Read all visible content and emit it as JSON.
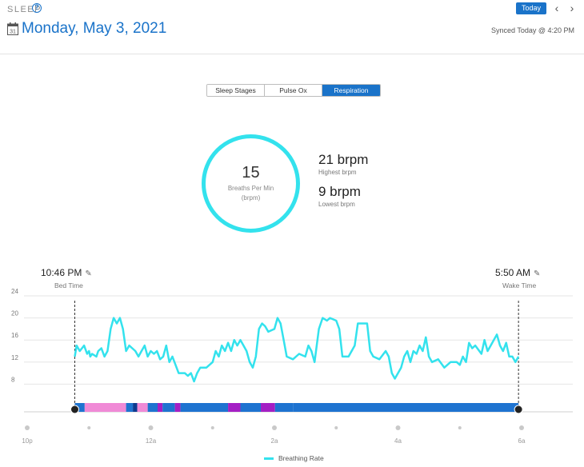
{
  "header": {
    "section": "SLEEP",
    "help_icon": "question-circle-icon",
    "calendar_day": "31",
    "date": "Monday, May 3, 2021",
    "today_button": "Today",
    "synced": "Synced Today @ 4:20 PM"
  },
  "tabs": [
    {
      "label": "Sleep Stages",
      "active": false
    },
    {
      "label": "Pulse Ox",
      "active": false
    },
    {
      "label": "Respiration",
      "active": true
    }
  ],
  "summary": {
    "avg_value": "15",
    "avg_label_line1": "Breaths Per Min",
    "avg_label_line2": "(brpm)",
    "highest_value": "21 brpm",
    "highest_label": "Highest brpm",
    "lowest_value": "9 brpm",
    "lowest_label": "Lowest brpm"
  },
  "bed_time": {
    "value": "10:46 PM",
    "label": "Bed Time"
  },
  "wake_time": {
    "value": "5:50 AM",
    "label": "Wake Time"
  },
  "legend": {
    "label": "Breathing Rate"
  },
  "colors": {
    "accent": "#1a73c9",
    "line": "#33e2ed",
    "awake": "#f08ad6",
    "light": "#1e73d0",
    "deep": "#0c3b8f",
    "rem": "#a41fc4"
  },
  "chart_data": {
    "type": "line",
    "ylim": [
      4,
      24
    ],
    "yticks": [
      8,
      12,
      16,
      20,
      24
    ],
    "xlim": [
      -0.5,
      8.5
    ],
    "xticks": [
      {
        "x": 0,
        "label": "10p"
      },
      {
        "x": 1,
        "label": ""
      },
      {
        "x": 2,
        "label": "12a"
      },
      {
        "x": 3,
        "label": ""
      },
      {
        "x": 4,
        "label": "2a"
      },
      {
        "x": 5,
        "label": ""
      },
      {
        "x": 6,
        "label": "4a"
      },
      {
        "x": 7,
        "label": ""
      },
      {
        "x": 8,
        "label": "6a"
      }
    ],
    "series": [
      {
        "name": "Breathing Rate",
        "points": [
          [
            0.77,
            13
          ],
          [
            0.8,
            15
          ],
          [
            0.85,
            14
          ],
          [
            0.92,
            15
          ],
          [
            0.97,
            13.5
          ],
          [
            1.0,
            14
          ],
          [
            1.02,
            13
          ],
          [
            1.05,
            13.5
          ],
          [
            1.12,
            13
          ],
          [
            1.15,
            14
          ],
          [
            1.2,
            14.5
          ],
          [
            1.25,
            13
          ],
          [
            1.3,
            14
          ],
          [
            1.35,
            18
          ],
          [
            1.4,
            20
          ],
          [
            1.45,
            19
          ],
          [
            1.5,
            20
          ],
          [
            1.55,
            18
          ],
          [
            1.6,
            14
          ],
          [
            1.65,
            15
          ],
          [
            1.7,
            14.5
          ],
          [
            1.75,
            14
          ],
          [
            1.8,
            13
          ],
          [
            1.85,
            14
          ],
          [
            1.9,
            15
          ],
          [
            1.95,
            13
          ],
          [
            2.0,
            14
          ],
          [
            2.05,
            13.5
          ],
          [
            2.1,
            14
          ],
          [
            2.15,
            12.5
          ],
          [
            2.2,
            13
          ],
          [
            2.25,
            15
          ],
          [
            2.3,
            12
          ],
          [
            2.35,
            13
          ],
          [
            2.45,
            10
          ],
          [
            2.55,
            10
          ],
          [
            2.6,
            9.5
          ],
          [
            2.65,
            10
          ],
          [
            2.7,
            8.5
          ],
          [
            2.75,
            10
          ],
          [
            2.8,
            11
          ],
          [
            2.9,
            11
          ],
          [
            3.0,
            12
          ],
          [
            3.05,
            14
          ],
          [
            3.1,
            13
          ],
          [
            3.15,
            15
          ],
          [
            3.2,
            14
          ],
          [
            3.25,
            15.5
          ],
          [
            3.3,
            14
          ],
          [
            3.35,
            16
          ],
          [
            3.4,
            15
          ],
          [
            3.45,
            16
          ],
          [
            3.5,
            15
          ],
          [
            3.55,
            14
          ],
          [
            3.6,
            12
          ],
          [
            3.65,
            11
          ],
          [
            3.7,
            13
          ],
          [
            3.75,
            18
          ],
          [
            3.8,
            19
          ],
          [
            3.85,
            18.5
          ],
          [
            3.9,
            17.5
          ],
          [
            4.0,
            18
          ],
          [
            4.05,
            20
          ],
          [
            4.1,
            19
          ],
          [
            4.15,
            16
          ],
          [
            4.2,
            13
          ],
          [
            4.3,
            12.5
          ],
          [
            4.4,
            13.5
          ],
          [
            4.5,
            13
          ],
          [
            4.55,
            15
          ],
          [
            4.6,
            14
          ],
          [
            4.65,
            12
          ],
          [
            4.72,
            18
          ],
          [
            4.78,
            20
          ],
          [
            4.85,
            19.5
          ],
          [
            4.9,
            20
          ],
          [
            5.0,
            19.5
          ],
          [
            5.05,
            18
          ],
          [
            5.1,
            13
          ],
          [
            5.2,
            13
          ],
          [
            5.3,
            15
          ],
          [
            5.35,
            19
          ],
          [
            5.4,
            19
          ],
          [
            5.5,
            19
          ],
          [
            5.55,
            14
          ],
          [
            5.6,
            13
          ],
          [
            5.7,
            12.5
          ],
          [
            5.8,
            14
          ],
          [
            5.85,
            13
          ],
          [
            5.9,
            10
          ],
          [
            5.95,
            9
          ],
          [
            6.0,
            10
          ],
          [
            6.05,
            11
          ],
          [
            6.1,
            13
          ],
          [
            6.15,
            14
          ],
          [
            6.2,
            12
          ],
          [
            6.25,
            14
          ],
          [
            6.3,
            13.5
          ],
          [
            6.35,
            15
          ],
          [
            6.4,
            14
          ],
          [
            6.45,
            16.5
          ],
          [
            6.5,
            13
          ],
          [
            6.55,
            12
          ],
          [
            6.65,
            12.5
          ],
          [
            6.75,
            11
          ],
          [
            6.85,
            12
          ],
          [
            6.95,
            12
          ],
          [
            7.0,
            11.5
          ],
          [
            7.05,
            13
          ],
          [
            7.1,
            12
          ],
          [
            7.15,
            15.5
          ],
          [
            7.2,
            14.5
          ],
          [
            7.25,
            15
          ],
          [
            7.35,
            13.5
          ],
          [
            7.4,
            16
          ],
          [
            7.45,
            14
          ],
          [
            7.5,
            15
          ],
          [
            7.6,
            17
          ],
          [
            7.65,
            15
          ],
          [
            7.7,
            14
          ],
          [
            7.75,
            15.5
          ],
          [
            7.8,
            13
          ],
          [
            7.85,
            13
          ],
          [
            7.9,
            12
          ],
          [
            7.95,
            13
          ]
        ]
      }
    ],
    "sleep_stages": [
      {
        "start": 0.77,
        "end": 0.93,
        "stage": "light"
      },
      {
        "start": 0.93,
        "end": 1.6,
        "stage": "awake"
      },
      {
        "start": 1.6,
        "end": 1.71,
        "stage": "light"
      },
      {
        "start": 1.71,
        "end": 1.78,
        "stage": "deep"
      },
      {
        "start": 1.78,
        "end": 1.95,
        "stage": "awake"
      },
      {
        "start": 1.95,
        "end": 2.11,
        "stage": "light"
      },
      {
        "start": 2.11,
        "end": 2.19,
        "stage": "rem"
      },
      {
        "start": 2.19,
        "end": 2.39,
        "stage": "light"
      },
      {
        "start": 2.39,
        "end": 2.48,
        "stage": "rem"
      },
      {
        "start": 2.48,
        "end": 3.25,
        "stage": "light"
      },
      {
        "start": 3.25,
        "end": 3.45,
        "stage": "rem"
      },
      {
        "start": 3.45,
        "end": 3.78,
        "stage": "light"
      },
      {
        "start": 3.78,
        "end": 4.01,
        "stage": "rem"
      },
      {
        "start": 4.01,
        "end": 4.3,
        "stage": "light"
      }
    ]
  }
}
